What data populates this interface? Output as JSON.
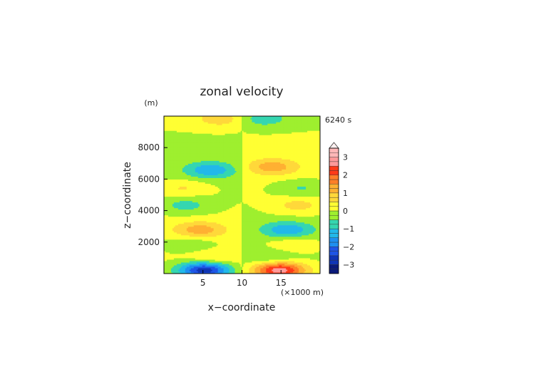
{
  "chart_data": {
    "type": "heatmap",
    "title": "zonal velocity",
    "xlabel": "x−coordinate",
    "ylabel": "z−coordinate",
    "x_unit": "(×1000 m)",
    "y_unit": "(m)",
    "time_label": "6240 s",
    "xlim": [
      0,
      20
    ],
    "ylim": [
      0,
      10000
    ],
    "x_ticks": [
      "5",
      "10",
      "15"
    ],
    "y_ticks": [
      "2000",
      "4000",
      "6000",
      "8000"
    ],
    "colorbar": {
      "ticks": [
        "3",
        "2",
        "1",
        "0",
        "−1",
        "−2",
        "−3"
      ],
      "levels": [
        -3.5,
        -3.25,
        -3,
        -2.75,
        -2.5,
        -2.25,
        -2,
        -1.75,
        -1.5,
        -1.25,
        -1,
        -0.75,
        -0.5,
        -0.25,
        0,
        0.25,
        0.5,
        0.75,
        1,
        1.25,
        1.5,
        1.75,
        2,
        2.25,
        2.5,
        2.75,
        3,
        3.25,
        3.5
      ]
    },
    "features": [
      {
        "x": 5.2,
        "z": 250,
        "u": -2.8
      },
      {
        "x": 14.8,
        "z": 250,
        "u": 2.8
      },
      {
        "x": 4.6,
        "z": 2800,
        "u": 1.2
      },
      {
        "x": 15.8,
        "z": 2800,
        "u": -1.3
      },
      {
        "x": 3.4,
        "z": 1850,
        "u": -0.6
      },
      {
        "x": 16.6,
        "z": 1850,
        "u": 0.6
      },
      {
        "x": 6.4,
        "z": 1050,
        "u": 0.6
      },
      {
        "x": 13.6,
        "z": 1050,
        "u": -0.6
      },
      {
        "x": 2.8,
        "z": 4350,
        "u": -0.7
      },
      {
        "x": 17.2,
        "z": 4350,
        "u": 0.7
      },
      {
        "x": 6.0,
        "z": 6600,
        "u": -1.3
      },
      {
        "x": 13.9,
        "z": 6800,
        "u": 1.2
      },
      {
        "x": 2.4,
        "z": 5450,
        "u": 0.6
      },
      {
        "x": 17.6,
        "z": 5450,
        "u": -0.6
      },
      {
        "x": 7.4,
        "z": 9850,
        "u": 0.8
      },
      {
        "x": 12.6,
        "z": 9850,
        "u": -0.8
      }
    ]
  }
}
